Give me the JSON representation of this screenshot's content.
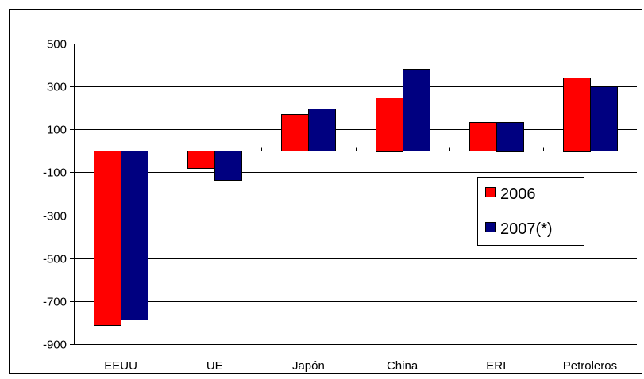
{
  "chart_data": {
    "type": "bar",
    "title": "",
    "xlabel": "",
    "ylabel": "",
    "categories": [
      "EEUU",
      "UE",
      "Japón",
      "China",
      "ERI",
      "Petroleros"
    ],
    "series": [
      {
        "name": "2006",
        "color": "#ff0000",
        "values": [
          -811,
          -81,
          171,
          250,
          133,
          343
        ]
      },
      {
        "name": "2007(*)",
        "color": "#000080",
        "values": [
          -786,
          -138,
          197,
          380,
          136,
          300
        ]
      }
    ],
    "ylim": [
      -900,
      500
    ],
    "yticks": [
      500,
      300,
      100,
      -100,
      -300,
      -500,
      -700,
      -900
    ],
    "grid": true,
    "legend_position": "right, inside plot"
  }
}
